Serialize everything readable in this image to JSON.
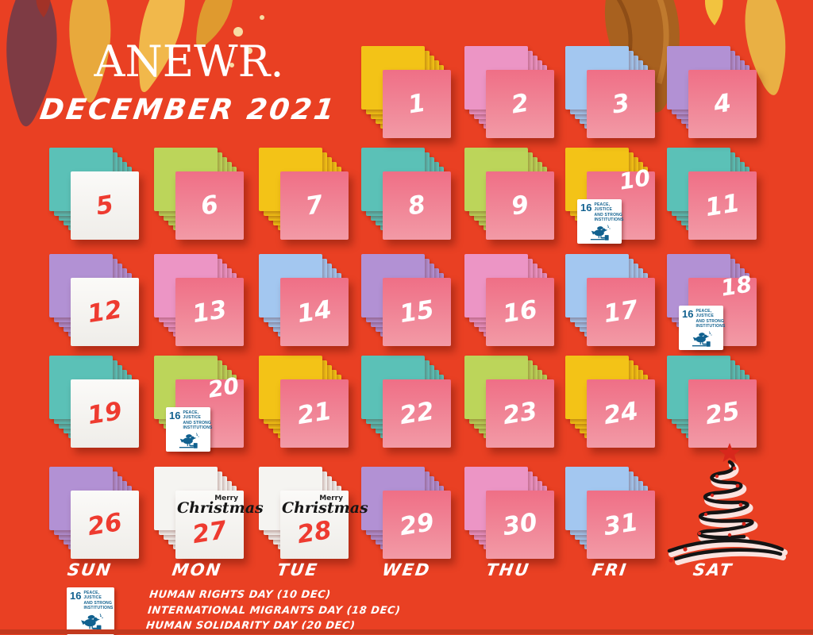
{
  "header": {
    "brand": "ANEWR.",
    "month_title": "DECEMBER 2021"
  },
  "weekdays": [
    "SUN",
    "MON",
    "TUE",
    "WED",
    "THU",
    "FRI",
    "SAT"
  ],
  "palette": {
    "background": "#E94023",
    "yellow": "#F3C317",
    "orchid": "#EC95C5",
    "blue": "#A3C7F0",
    "purple": "#B291D4",
    "teal": "#5BC1B7",
    "lime": "#BCD55A",
    "white_note": "#F5F4F1",
    "front_pink": "#EF6F86",
    "front_pink_light": "#F29AA6",
    "red_number": "#EE3B30",
    "sdg_blue": "#11618F",
    "star_red": "#D8271C"
  },
  "days": [
    {
      "day": "1",
      "row": 0,
      "col": 3,
      "back": "yellow"
    },
    {
      "day": "2",
      "row": 0,
      "col": 4,
      "back": "orchid"
    },
    {
      "day": "3",
      "row": 0,
      "col": 5,
      "back": "blue"
    },
    {
      "day": "4",
      "row": 0,
      "col": 6,
      "back": "purple"
    },
    {
      "day": "5",
      "row": 1,
      "col": 0,
      "back": "teal",
      "sunday": true
    },
    {
      "day": "6",
      "row": 1,
      "col": 1,
      "back": "lime"
    },
    {
      "day": "7",
      "row": 1,
      "col": 2,
      "back": "yellow"
    },
    {
      "day": "8",
      "row": 1,
      "col": 3,
      "back": "teal"
    },
    {
      "day": "9",
      "row": 1,
      "col": 4,
      "back": "lime"
    },
    {
      "day": "10",
      "row": 1,
      "col": 5,
      "back": "yellow",
      "sdg": true
    },
    {
      "day": "11",
      "row": 1,
      "col": 6,
      "back": "teal"
    },
    {
      "day": "12",
      "row": 2,
      "col": 0,
      "back": "purple",
      "sunday": true
    },
    {
      "day": "13",
      "row": 2,
      "col": 1,
      "back": "orchid"
    },
    {
      "day": "14",
      "row": 2,
      "col": 2,
      "back": "blue"
    },
    {
      "day": "15",
      "row": 2,
      "col": 3,
      "back": "purple"
    },
    {
      "day": "16",
      "row": 2,
      "col": 4,
      "back": "orchid"
    },
    {
      "day": "17",
      "row": 2,
      "col": 5,
      "back": "blue"
    },
    {
      "day": "18",
      "row": 2,
      "col": 6,
      "back": "purple",
      "sdg": true
    },
    {
      "day": "19",
      "row": 3,
      "col": 0,
      "back": "teal",
      "sunday": true
    },
    {
      "day": "20",
      "row": 3,
      "col": 1,
      "back": "lime",
      "sdg": true
    },
    {
      "day": "21",
      "row": 3,
      "col": 2,
      "back": "yellow"
    },
    {
      "day": "22",
      "row": 3,
      "col": 3,
      "back": "teal"
    },
    {
      "day": "23",
      "row": 3,
      "col": 4,
      "back": "lime"
    },
    {
      "day": "24",
      "row": 3,
      "col": 5,
      "back": "yellow"
    },
    {
      "day": "25",
      "row": 3,
      "col": 6,
      "back": "teal"
    },
    {
      "day": "26",
      "row": 4,
      "col": 0,
      "back": "purple",
      "sunday": true
    },
    {
      "day": "27",
      "row": 4,
      "col": 1,
      "back": "white",
      "christmas": true
    },
    {
      "day": "28",
      "row": 4,
      "col": 2,
      "back": "white",
      "christmas": true
    },
    {
      "day": "29",
      "row": 4,
      "col": 3,
      "back": "purple"
    },
    {
      "day": "30",
      "row": 4,
      "col": 4,
      "back": "orchid"
    },
    {
      "day": "31",
      "row": 4,
      "col": 5,
      "back": "blue"
    }
  ],
  "sdg_badge": {
    "number": "16",
    "label_lines": [
      "PEACE, JUSTICE",
      "AND STRONG",
      "INSTITUTIONS"
    ],
    "icon": "dove-on-gavel-icon"
  },
  "christmas_note": {
    "top_word": "Merry",
    "script_word": "Christmas"
  },
  "footer": {
    "events": [
      "HUMAN RIGHTS DAY (10 DEC)",
      "INTERNATIONAL MIGRANTS DAY (18 DEC)",
      "HUMAN SOLIDARITY DAY (20 DEC)"
    ]
  },
  "decorations": {
    "tree": "christmas-tree",
    "leaves": "autumn-leaves"
  }
}
